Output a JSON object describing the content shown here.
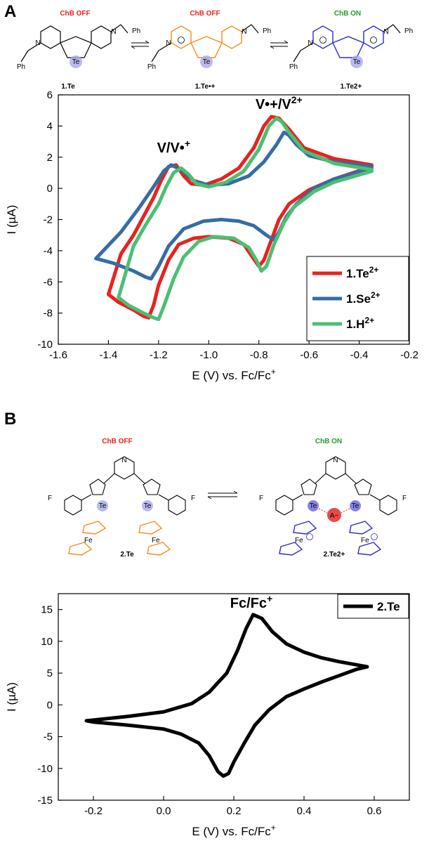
{
  "panels": {
    "a": {
      "letter": "A",
      "scheme": {
        "states": [
          "ChB OFF",
          "ChB OFF",
          "ChB ON"
        ],
        "state_colors": [
          "#e8221d",
          "#e8221d",
          "#1e9e2c"
        ],
        "compounds": [
          "1.Te",
          "1.Te•+",
          "1.Te2+"
        ],
        "compound_colors": [
          "#000000",
          "#f28c1d",
          "#2a2ad6"
        ],
        "atom_labels": {
          "n": "N",
          "te": "Te",
          "ph": "Ph"
        }
      }
    },
    "b": {
      "letter": "B",
      "scheme": {
        "states": [
          "ChB OFF",
          "ChB ON"
        ],
        "state_colors": [
          "#e8221d",
          "#1e9e2c"
        ],
        "compounds": [
          "2.Te",
          "2.Te2+"
        ],
        "compound_colors": [
          "#f28c1d",
          "#2a2ad6"
        ],
        "atom_labels": {
          "n": "N",
          "te": "Te",
          "fe": "Fe",
          "f": "F",
          "anion": "A−"
        }
      }
    }
  },
  "chart_data": [
    {
      "type": "line",
      "xlabel": "E (V) vs. Fc/Fc+",
      "ylabel": "I (µA)",
      "xlim": [
        -1.6,
        -0.2
      ],
      "ylim": [
        -10,
        6
      ],
      "xticks": [
        -1.6,
        -1.4,
        -1.2,
        -1.0,
        -0.8,
        -0.6,
        -0.4,
        -0.2
      ],
      "yticks": [
        -10,
        -8,
        -6,
        -4,
        -2,
        0,
        2,
        4,
        6
      ],
      "grid": false,
      "legend_position": "bottom-right",
      "annotations": [
        {
          "text": "V/V•+",
          "x": -1.14,
          "y": 2.3
        },
        {
          "text": "V•+/V2+",
          "x": -0.72,
          "y": 5.1
        }
      ],
      "series": [
        {
          "name": "1.Te2+",
          "color": "#e8221d",
          "x": [
            -0.35,
            -0.5,
            -0.62,
            -0.68,
            -0.72,
            -0.75,
            -0.78,
            -0.82,
            -0.88,
            -0.95,
            -1.02,
            -1.07,
            -1.1,
            -1.13,
            -1.16,
            -1.19,
            -1.22,
            -1.26,
            -1.3,
            -1.35,
            -1.4,
            -1.36,
            -1.3,
            -1.26,
            -1.24,
            -1.22,
            -1.2,
            -1.16,
            -1.12,
            -1.06,
            -1.0,
            -0.92,
            -0.86,
            -0.83,
            -0.8,
            -0.78,
            -0.75,
            -0.72,
            -0.68,
            -0.6,
            -0.5,
            -0.35
          ],
          "y": [
            1.5,
            1.9,
            2.6,
            3.8,
            4.5,
            4.6,
            4.0,
            2.6,
            1.3,
            0.6,
            0.2,
            0.3,
            0.8,
            1.5,
            1.4,
            0.5,
            -0.6,
            -1.8,
            -3.0,
            -4.2,
            -6.8,
            -7.3,
            -7.8,
            -8.2,
            -8.3,
            -7.5,
            -6.2,
            -4.6,
            -3.6,
            -3.2,
            -3.1,
            -3.2,
            -3.6,
            -4.3,
            -5.0,
            -4.6,
            -3.3,
            -2.0,
            -1.0,
            -0.1,
            0.6,
            1.4
          ]
        },
        {
          "name": "1.Se2+",
          "color": "#366ca3",
          "x": [
            -0.35,
            -0.5,
            -0.6,
            -0.65,
            -0.68,
            -0.7,
            -0.73,
            -0.78,
            -0.84,
            -0.92,
            -1.0,
            -1.06,
            -1.11,
            -1.15,
            -1.18,
            -1.22,
            -1.28,
            -1.35,
            -1.45,
            -1.38,
            -1.3,
            -1.25,
            -1.23,
            -1.2,
            -1.16,
            -1.1,
            -1.02,
            -0.95,
            -0.88,
            -0.82,
            -0.77,
            -0.74,
            -0.72,
            -0.69,
            -0.65,
            -0.58,
            -0.5,
            -0.35
          ],
          "y": [
            1.4,
            1.7,
            2.1,
            2.8,
            3.4,
            3.6,
            2.8,
            1.7,
            0.8,
            0.3,
            0.2,
            0.5,
            1.2,
            1.5,
            1.1,
            0.1,
            -1.3,
            -2.8,
            -4.5,
            -4.8,
            -5.3,
            -5.7,
            -5.8,
            -5.0,
            -3.7,
            -2.6,
            -2.1,
            -2.0,
            -2.1,
            -2.4,
            -3.0,
            -3.3,
            -2.8,
            -1.8,
            -1.0,
            0.0,
            0.6,
            1.3
          ]
        },
        {
          "name": "1.H2+",
          "color": "#4cbf72",
          "x": [
            -0.35,
            -0.5,
            -0.62,
            -0.68,
            -0.71,
            -0.73,
            -0.76,
            -0.8,
            -0.86,
            -0.93,
            -1.0,
            -1.05,
            -1.08,
            -1.11,
            -1.14,
            -1.17,
            -1.2,
            -1.25,
            -1.3,
            -1.36,
            -1.32,
            -1.26,
            -1.22,
            -1.2,
            -1.18,
            -1.14,
            -1.1,
            -1.04,
            -0.98,
            -0.9,
            -0.84,
            -0.81,
            -0.79,
            -0.77,
            -0.74,
            -0.7,
            -0.66,
            -0.58,
            -0.5,
            -0.35
          ],
          "y": [
            1.2,
            1.6,
            2.4,
            3.6,
            4.3,
            4.5,
            4.0,
            2.5,
            1.1,
            0.4,
            0.1,
            0.3,
            0.9,
            1.3,
            1.0,
            0.1,
            -1.0,
            -2.3,
            -3.7,
            -7.0,
            -7.5,
            -8.0,
            -8.3,
            -8.4,
            -7.6,
            -5.8,
            -4.4,
            -3.4,
            -3.1,
            -3.2,
            -3.8,
            -4.6,
            -5.3,
            -5.0,
            -3.6,
            -2.2,
            -1.2,
            -0.2,
            0.4,
            1.1
          ]
        }
      ]
    },
    {
      "type": "line",
      "xlabel": "E (V) vs. Fc/Fc+",
      "ylabel": "I (µA)",
      "xlim": [
        -0.3,
        0.7
      ],
      "ylim": [
        -15,
        17.5
      ],
      "xticks": [
        -0.2,
        0.0,
        0.2,
        0.4,
        0.6
      ],
      "yticks": [
        -15,
        -10,
        -5,
        0,
        5,
        10,
        15
      ],
      "grid": false,
      "legend_position": "top-right",
      "annotations": [
        {
          "text": "Fc/Fc+",
          "x": 0.25,
          "y": 15.3
        }
      ],
      "series": [
        {
          "name": "2.Te",
          "color": "#000000",
          "x": [
            -0.22,
            -0.1,
            0.0,
            0.08,
            0.13,
            0.18,
            0.21,
            0.235,
            0.255,
            0.28,
            0.31,
            0.35,
            0.4,
            0.45,
            0.5,
            0.55,
            0.58,
            0.55,
            0.5,
            0.45,
            0.4,
            0.35,
            0.3,
            0.26,
            0.23,
            0.2,
            0.185,
            0.17,
            0.155,
            0.13,
            0.1,
            0.05,
            0.0,
            -0.1,
            -0.2,
            -0.22
          ],
          "y": [
            -2.5,
            -1.8,
            -1.1,
            0.2,
            2.0,
            5.0,
            8.5,
            12.0,
            14.2,
            13.6,
            11.5,
            9.6,
            8.3,
            7.4,
            6.8,
            6.3,
            6.0,
            5.6,
            4.6,
            3.6,
            2.5,
            1.3,
            -0.8,
            -3.2,
            -6.0,
            -9.0,
            -10.8,
            -11.2,
            -10.5,
            -8.0,
            -6.0,
            -4.6,
            -3.8,
            -3.2,
            -2.7,
            -2.5
          ]
        }
      ]
    }
  ]
}
